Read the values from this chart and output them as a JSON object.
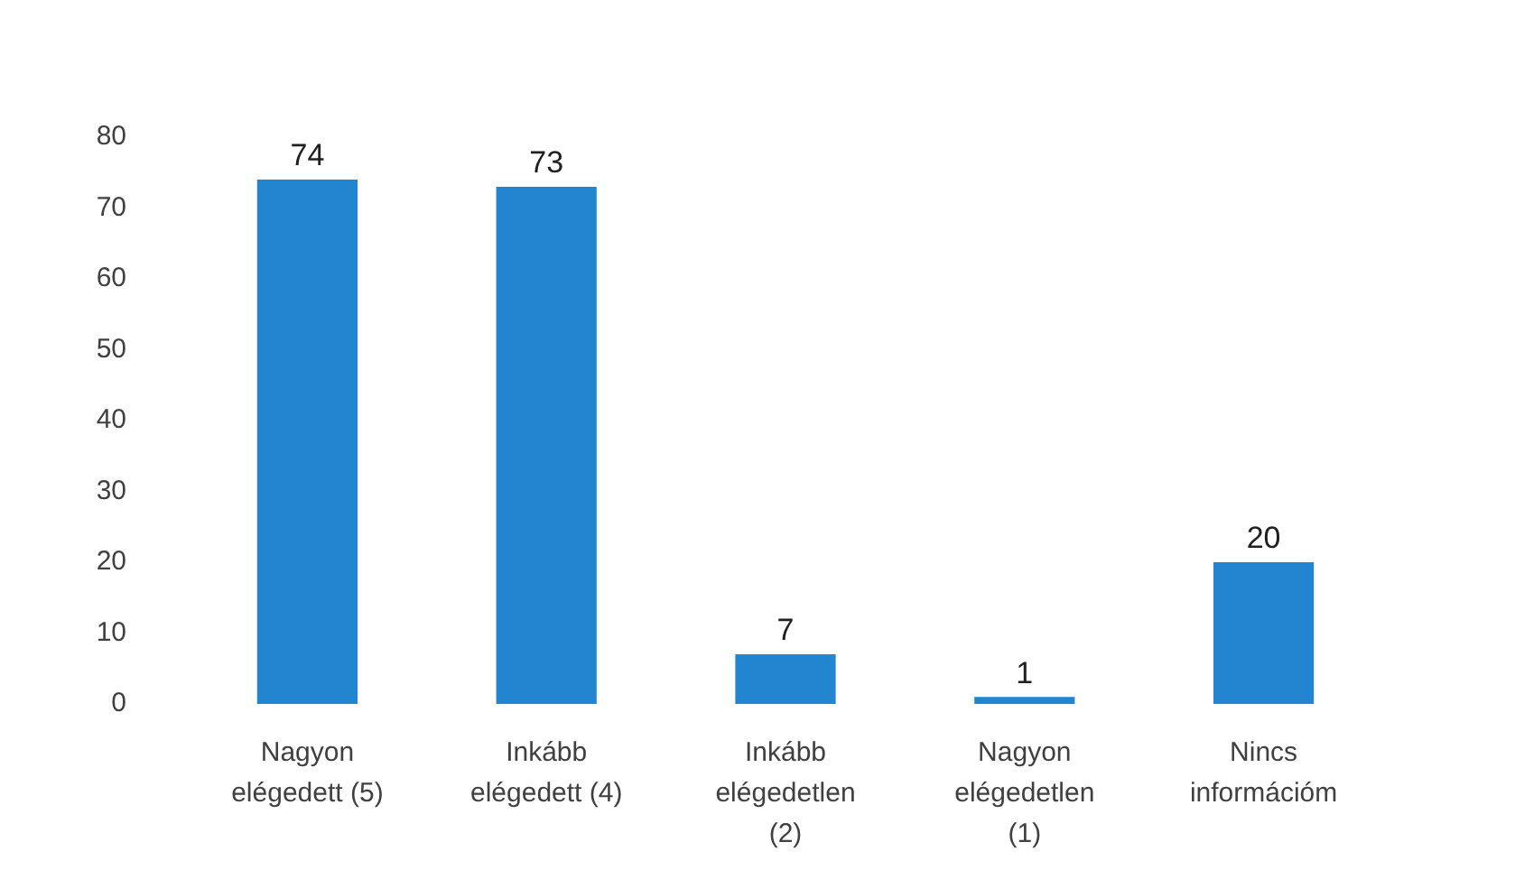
{
  "chart_data": {
    "type": "bar",
    "categories": [
      "Nagyon elégedett (5)",
      "Inkább elégedett (4)",
      "Inkább elégedetlen (2)",
      "Nagyon elégedetlen (1)",
      "Nincs információm"
    ],
    "values": [
      74,
      73,
      7,
      1,
      20
    ],
    "color": "#2385d0",
    "ylim": [
      0,
      80
    ],
    "yticks": [
      0,
      10,
      20,
      30,
      40,
      50,
      60,
      70,
      80
    ],
    "grid": false,
    "legend": false,
    "data_labels": true
  }
}
